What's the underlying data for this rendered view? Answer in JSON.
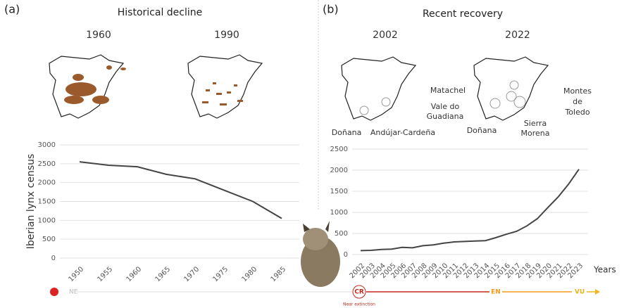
{
  "panels": [
    {
      "label": "(a)",
      "title": "Historical decline",
      "maps": [
        "1960",
        "1990"
      ]
    },
    {
      "label": "(b)",
      "title": "Recent recovery",
      "maps": [
        "2002",
        "2022"
      ]
    }
  ],
  "map_labels_2002": [
    "Doñana",
    "Andújar-Cardeña"
  ],
  "map_labels_2022": {
    "matachel": "Matachel",
    "guadiana": [
      "Vale do",
      "Guadiana"
    ],
    "donana": "Doñana",
    "morena": [
      "Sierra",
      "Morena"
    ],
    "toledo": [
      "Montes",
      "de",
      "Toledo"
    ]
  },
  "chart_data": [
    {
      "type": "line",
      "y_label": "Iberian lynx census",
      "categories": [
        "1950",
        "1955",
        "1960",
        "1965",
        "1970",
        "1975",
        "1980",
        "1985"
      ],
      "values": [
        2550,
        2460,
        2420,
        2220,
        2100,
        1800,
        1500,
        1050
      ],
      "color": "#444444",
      "ylim": [
        0,
        3000
      ],
      "yticks": [
        0,
        500,
        1000,
        1500,
        2000,
        2500,
        3000
      ],
      "grid": true
    },
    {
      "type": "line",
      "x_label": "Years",
      "categories": [
        "2002",
        "2003",
        "2004",
        "2005",
        "2006",
        "2007",
        "2008",
        "2009",
        "2010",
        "2011",
        "2012",
        "2013",
        "2014",
        "2015",
        "2016",
        "2017",
        "2018",
        "2019",
        "2020",
        "2021",
        "2022",
        "2023"
      ],
      "values": [
        94,
        100,
        120,
        130,
        170,
        160,
        210,
        230,
        270,
        300,
        310,
        320,
        330,
        400,
        480,
        550,
        680,
        850,
        1111,
        1365,
        1668,
        2021
      ],
      "color": "#444444",
      "ylim": [
        0,
        2500
      ],
      "yticks": [
        0,
        500,
        1000,
        1500,
        2000,
        2500
      ],
      "grid": true
    }
  ],
  "status": {
    "ne": "NE",
    "cr": "CR",
    "cr_note": "Near extinction",
    "en": "EN",
    "vu": "VU"
  }
}
